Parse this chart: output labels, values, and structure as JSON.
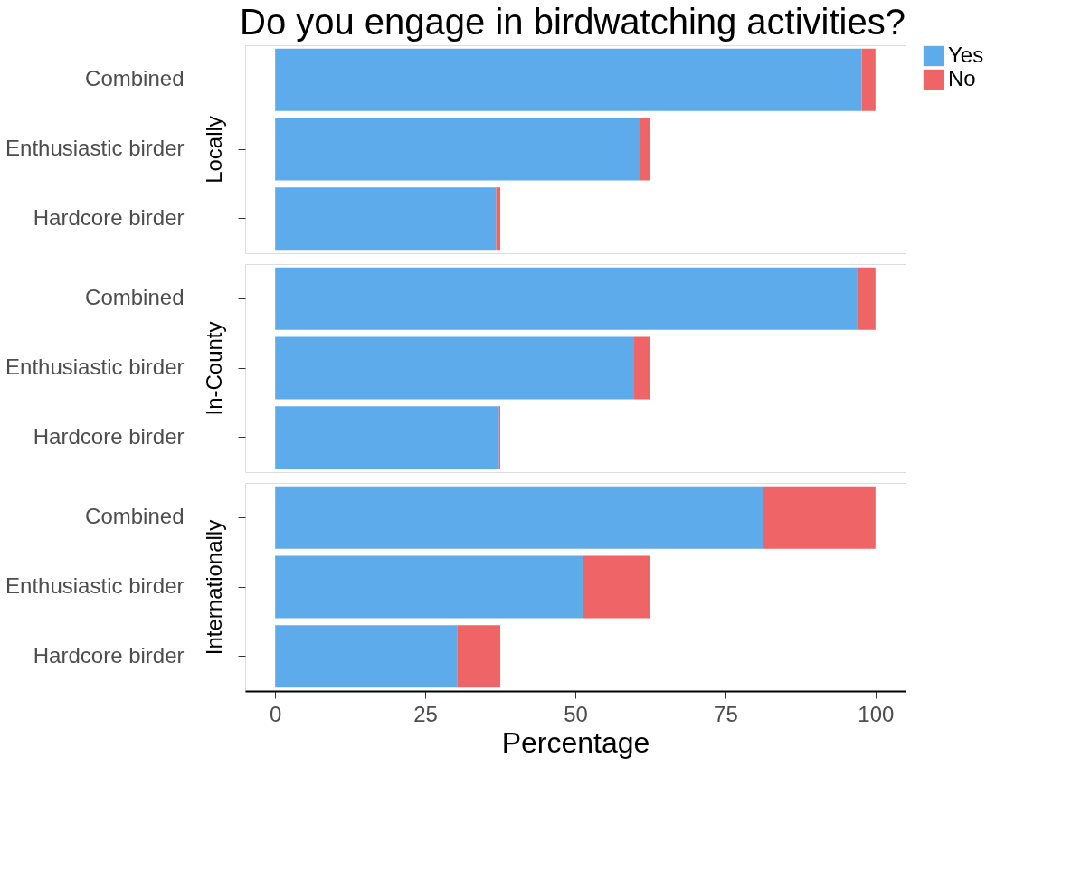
{
  "chart_data": [
    {
      "type": "bar",
      "title": "Do you engage in birdwatching activities?",
      "ylabel": "Locally",
      "orientation": "horizontal",
      "stacked": true,
      "categories": [
        "Combined",
        "Enthusiastic birder",
        "Hardcore birder"
      ],
      "series": [
        {
          "name": "Yes",
          "color": "#5dabea",
          "values": [
            97.7,
            60.8,
            36.8
          ]
        },
        {
          "name": "No",
          "color": "#ef6467",
          "values": [
            2.3,
            1.7,
            0.7
          ]
        }
      ],
      "xlim": [
        -5,
        105
      ],
      "xticks": [
        0,
        25,
        50,
        75,
        100
      ],
      "tick_labels": "y",
      "legend": "right",
      "grid": false
    },
    {
      "type": "bar",
      "ylabel": "In-County",
      "orientation": "horizontal",
      "stacked": true,
      "categories": [
        "Combined",
        "Enthusiastic birder",
        "Hardcore birder"
      ],
      "series": [
        {
          "name": "Yes",
          "color": "#5dabea",
          "values": [
            97.0,
            59.8,
            37.3
          ]
        },
        {
          "name": "No",
          "color": "#ef6467",
          "values": [
            3.0,
            2.7,
            0.2
          ]
        }
      ],
      "xlim": [
        -5,
        105
      ],
      "xticks": [
        0,
        25,
        50,
        75,
        100
      ],
      "tick_labels": "y",
      "legend": "right",
      "grid": false
    },
    {
      "type": "bar",
      "ylabel": "Internationally",
      "xlabel": "Percentage",
      "orientation": "horizontal",
      "stacked": true,
      "categories": [
        "Combined",
        "Enthusiastic birder",
        "Hardcore birder"
      ],
      "series": [
        {
          "name": "Yes",
          "color": "#5dabea",
          "values": [
            81.3,
            51.2,
            30.3
          ]
        },
        {
          "name": "No",
          "color": "#ef6467",
          "values": [
            18.7,
            11.3,
            7.2
          ]
        }
      ],
      "xlim": [
        -5,
        105
      ],
      "xticks": [
        0,
        25,
        50,
        75,
        100
      ],
      "legend": "right",
      "grid": false
    }
  ]
}
